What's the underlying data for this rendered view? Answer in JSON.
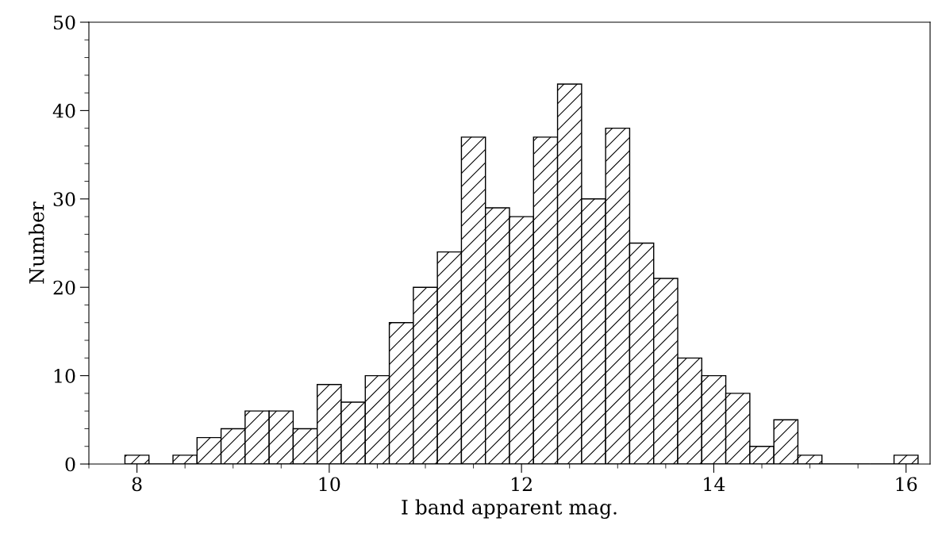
{
  "chart_data": {
    "type": "histogram",
    "xlabel": "I band apparent mag.",
    "ylabel": "Number",
    "bins": [
      7.875,
      8.125,
      8.375,
      8.625,
      8.875,
      9.125,
      9.375,
      9.625,
      9.875,
      10.125,
      10.375,
      10.625,
      10.875,
      11.125,
      11.375,
      11.625,
      11.875,
      12.125,
      12.375,
      12.625,
      12.875,
      13.125,
      13.375,
      13.625,
      13.875,
      14.125,
      14.375,
      14.625,
      14.875,
      15.125,
      15.375,
      15.625,
      15.875,
      16.125
    ],
    "values": [
      1,
      0,
      1,
      3,
      4,
      6,
      6,
      4,
      9,
      7,
      10,
      16,
      20,
      24,
      37,
      29,
      28,
      37,
      43,
      30,
      38,
      25,
      21,
      12,
      10,
      8,
      2,
      5,
      1,
      0,
      0,
      0,
      1
    ],
    "color": "#000000",
    "xlim": [
      7.5,
      16.25
    ],
    "xticks": [
      8,
      10,
      12,
      14,
      16
    ],
    "ylim": [
      0,
      50
    ],
    "yticks": [
      0,
      10,
      20,
      30,
      40,
      50
    ],
    "grid": false
  }
}
